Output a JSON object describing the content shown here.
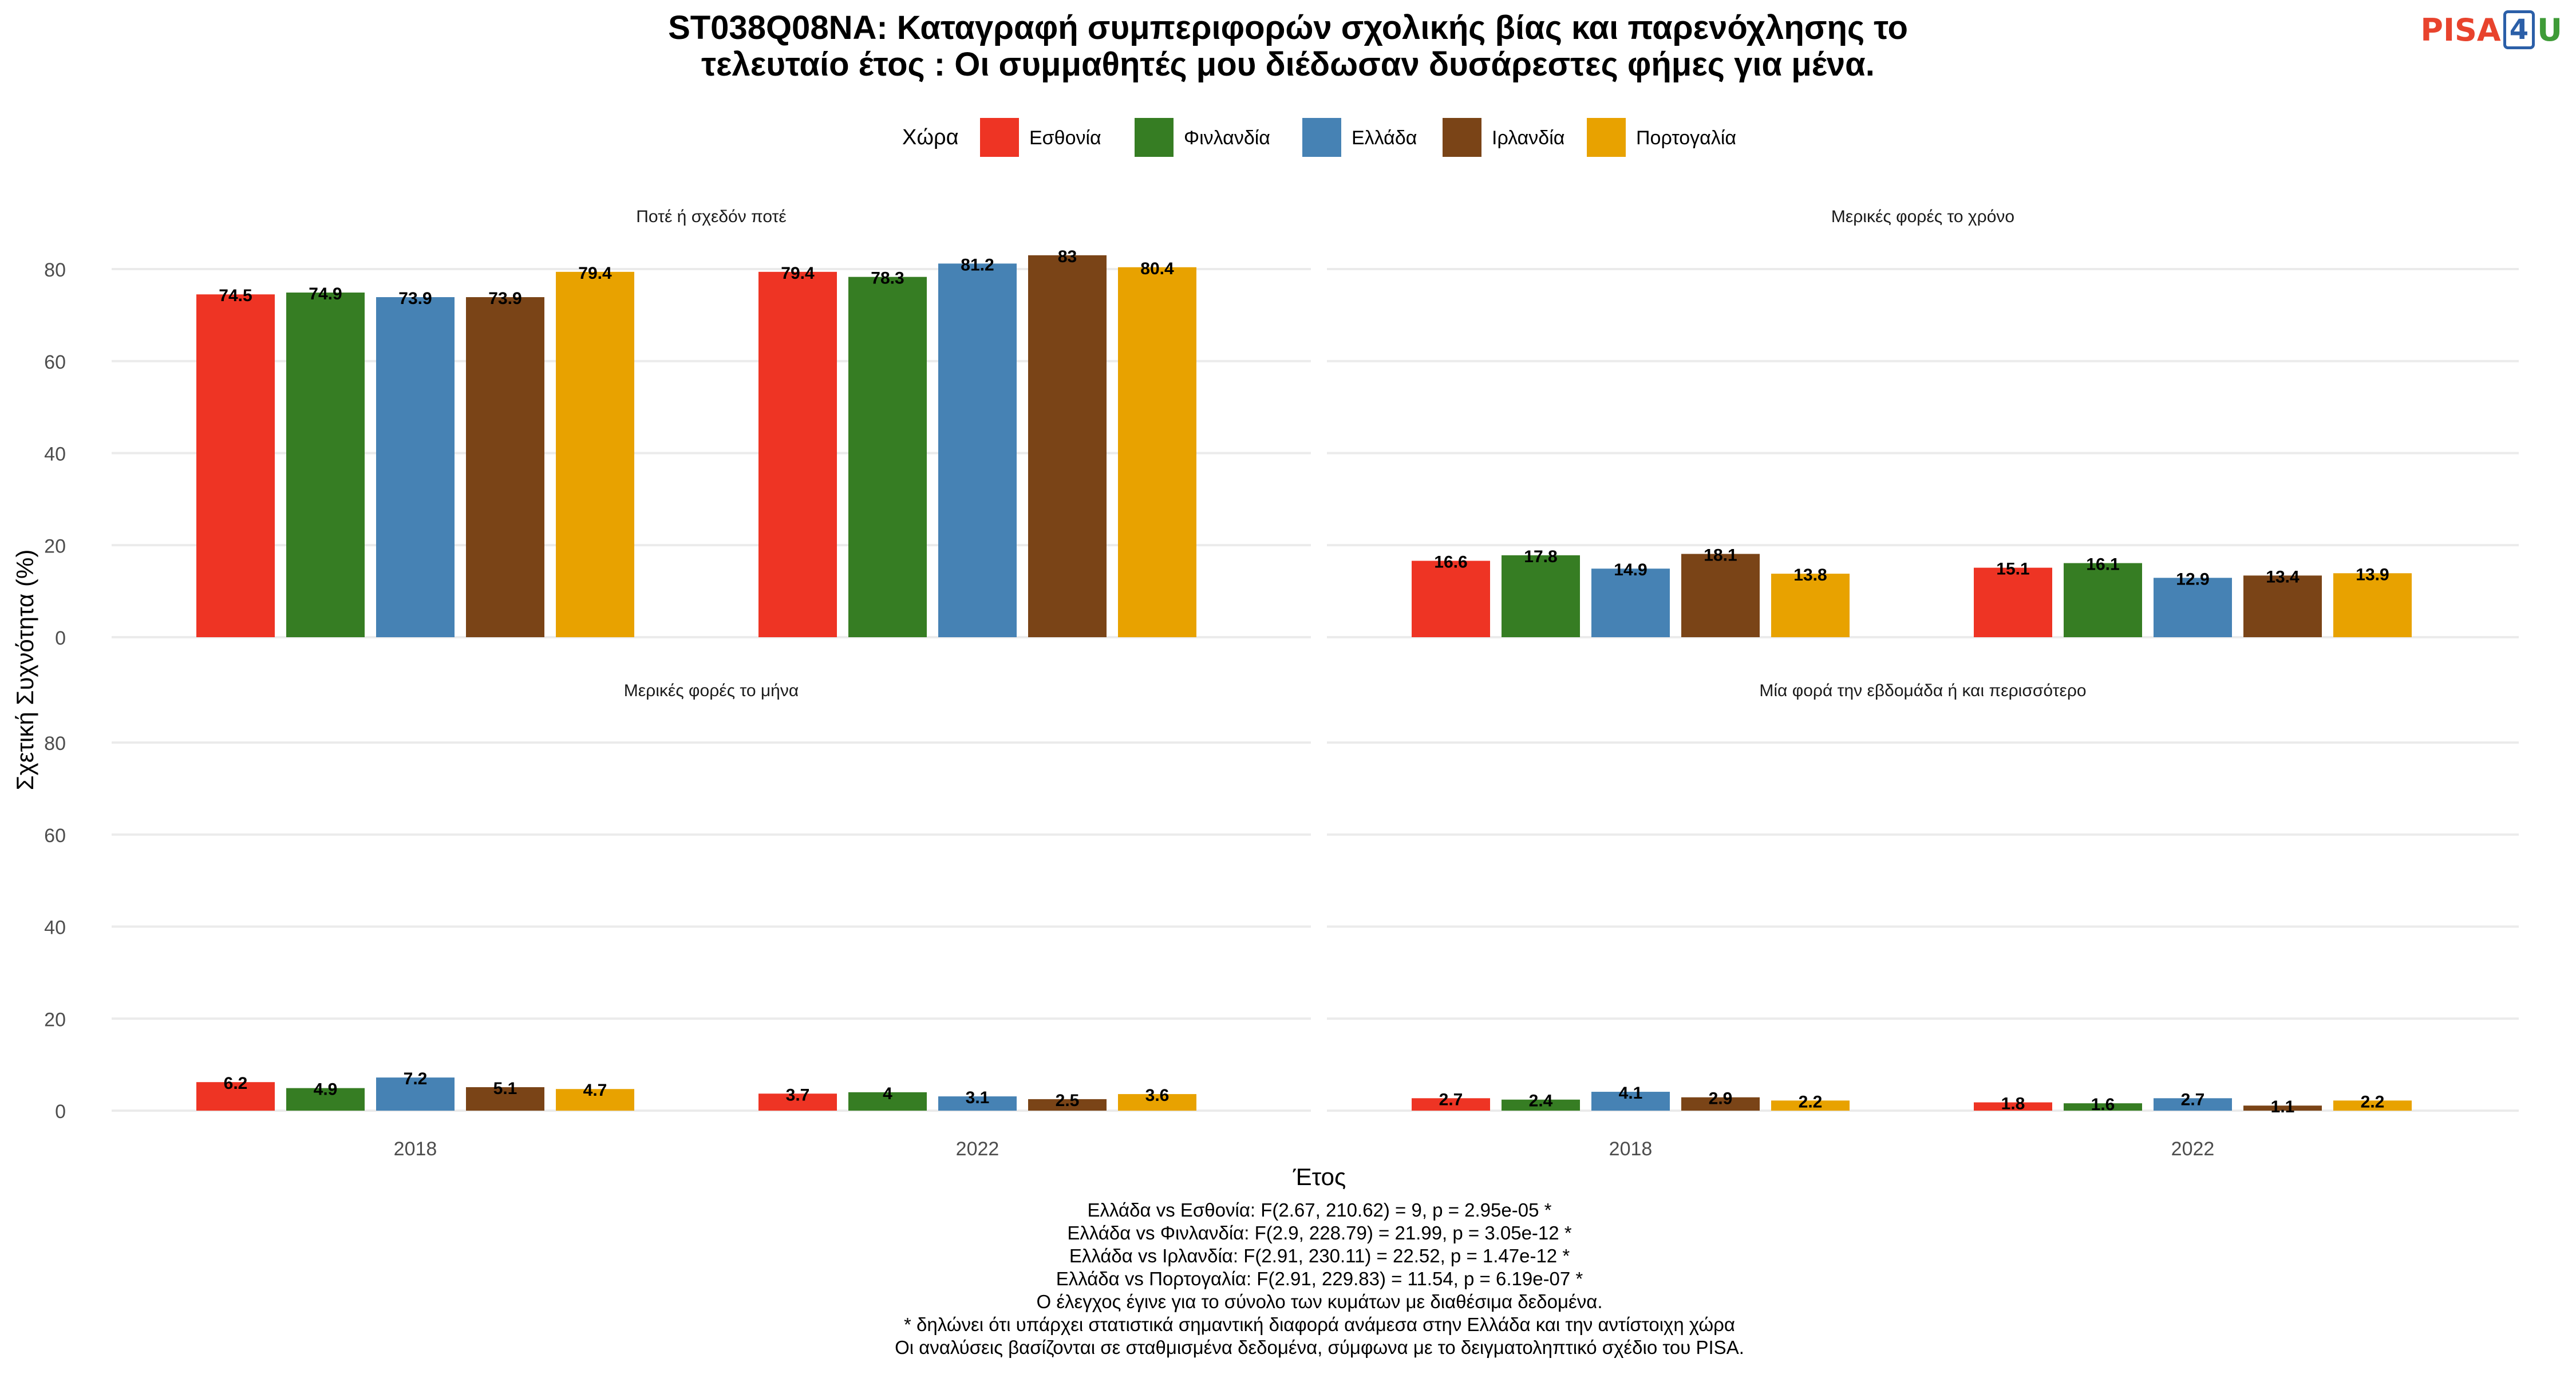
{
  "logo": {
    "pisa": "PISA",
    "four": "4",
    "u": "U"
  },
  "chart_data": {
    "type": "bar",
    "title": "ST038Q08NA: Καταγραφή συμπεριφορών σχολικής βίας και παρενόχλησης το τελευταίο έτος : Οι συμμαθητές μου διέδωσαν δυσάρεστες φήμες για μένα.",
    "title_lines": [
      "ST038Q08NA: Καταγραφή συμπεριφορών σχολικής βίας και παρενόχλησης το",
      "τελευταίο έτος : Οι συμμαθητές μου διέδωσαν δυσάρεστες φήμες για μένα."
    ],
    "xlabel": "Έτος",
    "ylabel": "Σχετική Συχνότητα (%)",
    "ylim": [
      0,
      85
    ],
    "yticks": [
      0,
      20,
      40,
      60,
      80
    ],
    "grid": true,
    "legend": {
      "title": "Χώρα",
      "position": "top"
    },
    "categories": [
      "2018",
      "2022"
    ],
    "series": [
      {
        "name": "Εσθονία",
        "color": "#ee3424"
      },
      {
        "name": "Φινλανδία",
        "color": "#367d23"
      },
      {
        "name": "Ελλάδα",
        "color": "#4682b4"
      },
      {
        "name": "Ιρλανδία",
        "color": "#7a4417"
      },
      {
        "name": "Πορτογαλία",
        "color": "#e8a200"
      }
    ],
    "panels": [
      {
        "label": "Ποτέ ή σχεδόν ποτέ",
        "values": [
          [
            74.5,
            74.9,
            73.9,
            73.9,
            79.4
          ],
          [
            79.4,
            78.3,
            81.2,
            83,
            80.4
          ]
        ]
      },
      {
        "label": "Μερικές φορές το χρόνο",
        "values": [
          [
            16.6,
            17.8,
            14.9,
            18.1,
            13.8
          ],
          [
            15.1,
            16.1,
            12.9,
            13.4,
            13.9
          ]
        ]
      },
      {
        "label": "Μερικές φορές το μήνα",
        "values": [
          [
            6.2,
            4.9,
            7.2,
            5.1,
            4.7
          ],
          [
            3.7,
            4,
            3.1,
            2.5,
            3.6
          ]
        ]
      },
      {
        "label": "Μία φορά την εβδομάδα ή και περισσότερο",
        "values": [
          [
            2.7,
            2.4,
            4.1,
            2.9,
            2.2
          ],
          [
            1.8,
            1.6,
            2.7,
            1.1,
            2.2
          ]
        ]
      }
    ],
    "footnotes": [
      "Ελλάδα vs Εσθονία: F(2.67, 210.62) = 9, p = 2.95e-05 *",
      "Ελλάδα vs Φινλανδία: F(2.9, 228.79) = 21.99, p = 3.05e-12 *",
      "Ελλάδα vs Ιρλανδία: F(2.91, 230.11) = 22.52, p = 1.47e-12 *",
      "Ελλάδα vs Πορτογαλία: F(2.91, 229.83) = 11.54, p = 6.19e-07 *",
      "Ο έλεγχος έγινε για το σύνολο των κυμάτων με διαθέσιμα δεδομένα.",
      "* δηλώνει ότι υπάρχει στατιστικά σημαντική διαφορά ανάμεσα στην Ελλάδα και την αντίστοιχη χώρα",
      "Οι αναλύσεις βασίζονται σε σταθμισμένα δεδομένα, σύμφωνα με το δειγματοληπτικό σχέδιο του PISA."
    ]
  }
}
